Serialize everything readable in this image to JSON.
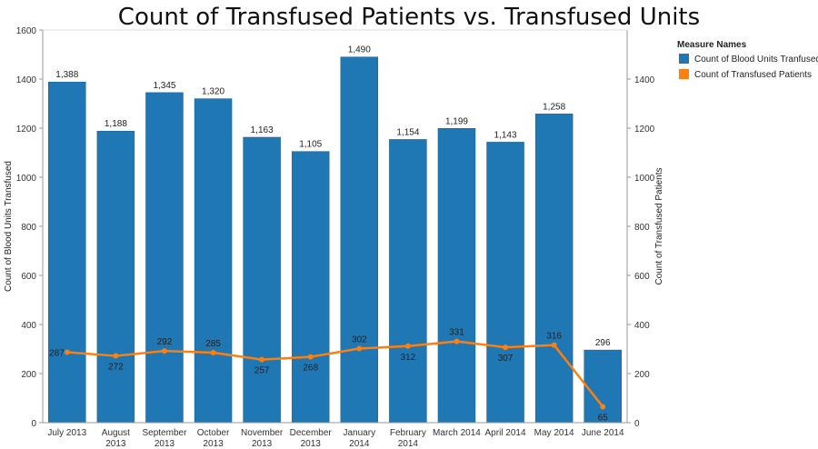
{
  "chart_data": {
    "type": "bar",
    "title": "Count of Transfused Patients vs. Transfused Units",
    "categories": [
      [
        "July 2013"
      ],
      [
        "August",
        "2013"
      ],
      [
        "September",
        "2013"
      ],
      [
        "October",
        "2013"
      ],
      [
        "November",
        "2013"
      ],
      [
        "December",
        "2013"
      ],
      [
        "January",
        "2014"
      ],
      [
        "February",
        "2014"
      ],
      [
        "March 2014"
      ],
      [
        "April 2014"
      ],
      [
        "May 2014"
      ],
      [
        "June 2014"
      ]
    ],
    "series": [
      {
        "name": "Count of Blood Units Tranfused",
        "type": "bar",
        "axis": "left",
        "color": "#1f77b4",
        "values": [
          1388,
          1188,
          1345,
          1320,
          1163,
          1105,
          1490,
          1154,
          1199,
          1143,
          1258,
          296
        ],
        "labels": [
          "1,388",
          "1,188",
          "1,345",
          "1,320",
          "1,163",
          "1,105",
          "1,490",
          "1,154",
          "1,199",
          "1,143",
          "1,258",
          "296"
        ]
      },
      {
        "name": "Count of Transfused Patients",
        "type": "line",
        "axis": "right",
        "color": "#ff7f0e",
        "values": [
          287,
          272,
          292,
          285,
          257,
          268,
          302,
          312,
          331,
          307,
          316,
          65
        ],
        "labels": [
          "287",
          "272",
          "292",
          "285",
          "257",
          "268",
          "302",
          "312",
          "331",
          "307",
          "316",
          "65"
        ]
      }
    ],
    "ylabel": "Count of Blood Units Transfused",
    "ylabel_right": "Count of Transfused Patients",
    "ylim": [
      0,
      1600
    ],
    "ylim_right": [
      0,
      1600
    ],
    "yticks": [
      0,
      200,
      400,
      600,
      800,
      1000,
      1200,
      1400,
      1600
    ],
    "yticks_right": [
      0,
      200,
      400,
      600,
      800,
      1000,
      1200,
      1400
    ],
    "legend": {
      "title": "Measure Names",
      "position": "top-right",
      "items": [
        "Count of Blood Units Tranfused",
        "Count of Transfused Patients"
      ]
    }
  }
}
